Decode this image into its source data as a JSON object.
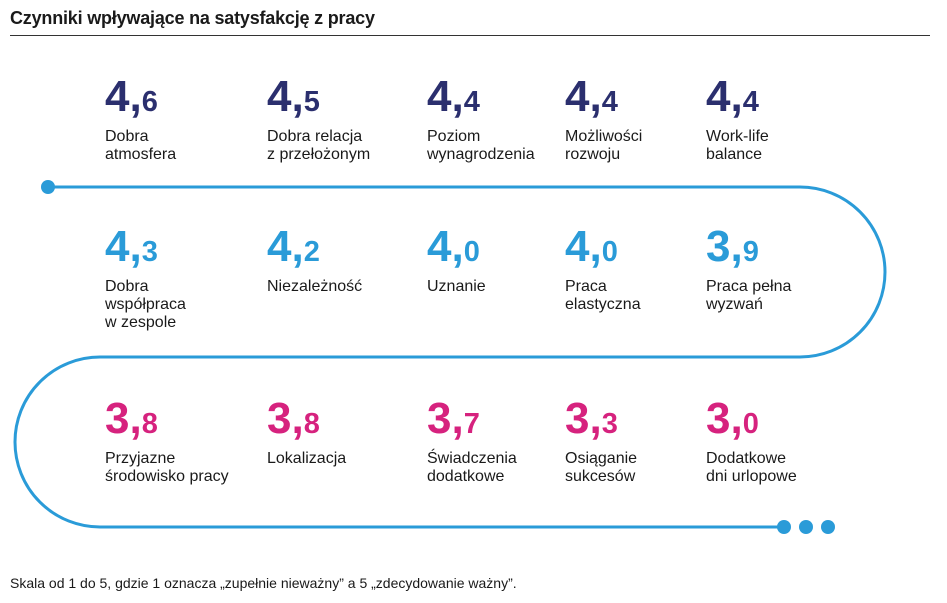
{
  "title": "Czynniki wpływające na satysfakcję z pracy",
  "footnote": "Skala od 1 do 5, gdzie 1 oznacza „zupełnie nieważny” a 5 „zdecydowanie ważny”.",
  "colors": {
    "row1": "#2b2f6e",
    "row2": "#2a9bd8",
    "row3": "#d6227e",
    "path": "#2a9bd8"
  },
  "chart_data": {
    "type": "table",
    "title": "Czynniki wpływające na satysfakcję z pracy",
    "decimal_separator": ",",
    "rows": [
      {
        "color": "#2b2f6e",
        "items": [
          {
            "label": "Dobra\natmosfera",
            "value": 4.6,
            "int": "4",
            "dec": "6"
          },
          {
            "label": "Dobra relacja\nz przełożonym",
            "value": 4.5,
            "int": "4",
            "dec": "5"
          },
          {
            "label": "Poziom\nwynagrodzenia",
            "value": 4.4,
            "int": "4",
            "dec": "4"
          },
          {
            "label": "Możliwości\nrozwoju",
            "value": 4.4,
            "int": "4",
            "dec": "4"
          },
          {
            "label": "Work-life\nbalance",
            "value": 4.4,
            "int": "4",
            "dec": "4"
          }
        ]
      },
      {
        "color": "#2a9bd8",
        "items": [
          {
            "label": "Dobra\nwspółpraca\nw zespole",
            "value": 4.3,
            "int": "4",
            "dec": "3"
          },
          {
            "label": "Niezależność",
            "value": 4.2,
            "int": "4",
            "dec": "2"
          },
          {
            "label": "Uznanie",
            "value": 4.0,
            "int": "4",
            "dec": "0"
          },
          {
            "label": "Praca\nelastyczna",
            "value": 4.0,
            "int": "4",
            "dec": "0"
          },
          {
            "label": "Praca pełna\nwyzwań",
            "value": 3.9,
            "int": "3",
            "dec": "9"
          }
        ]
      },
      {
        "color": "#d6227e",
        "items": [
          {
            "label": "Przyjazne\nśrodowisko pracy",
            "value": 3.8,
            "int": "3",
            "dec": "8"
          },
          {
            "label": "Lokalizacja",
            "value": 3.8,
            "int": "3",
            "dec": "8"
          },
          {
            "label": "Świadczenia\ndodatkowe",
            "value": 3.7,
            "int": "3",
            "dec": "7"
          },
          {
            "label": "Osiąganie\nsukcesów",
            "value": 3.3,
            "int": "3",
            "dec": "3"
          },
          {
            "label": "Dodatkowe\ndni urlopowe",
            "value": 3.0,
            "int": "3",
            "dec": "0"
          }
        ]
      }
    ]
  }
}
